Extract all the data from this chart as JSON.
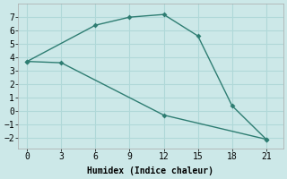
{
  "xlabel": "Humidex (Indice chaleur)",
  "series1_x": [
    0,
    6,
    9,
    12,
    15,
    18,
    21
  ],
  "series1_y": [
    3.7,
    6.4,
    7.0,
    7.2,
    5.6,
    0.4,
    -2.1
  ],
  "series2_x": [
    0,
    3,
    12,
    21
  ],
  "series2_y": [
    3.7,
    3.6,
    -0.3,
    -2.1
  ],
  "line_color": "#2e7d72",
  "bg_color": "#cce8e8",
  "grid_color": "#b0d8d8",
  "xlim": [
    -0.8,
    22.5
  ],
  "ylim": [
    -2.8,
    8.0
  ],
  "xticks": [
    0,
    3,
    6,
    9,
    12,
    15,
    18,
    21
  ],
  "yticks": [
    -2,
    -1,
    0,
    1,
    2,
    3,
    4,
    5,
    6,
    7
  ]
}
